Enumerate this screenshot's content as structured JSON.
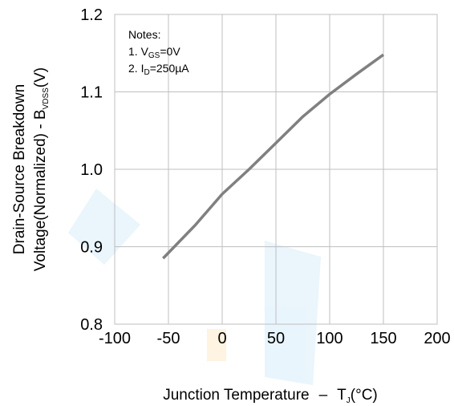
{
  "chart_data": {
    "type": "line",
    "xlabel_main": "Junction Temperature",
    "xlabel_dash": "–",
    "xlabel_sym": "T",
    "xlabel_sub": "J",
    "xlabel_unit": "(°C)",
    "ylabel_line1": "Drain-Source Breakdown",
    "ylabel_line2_pre": "Voltage(Normalized) - B",
    "ylabel_line2_sub": "VDSS",
    "ylabel_line2_post": "(V)",
    "xlim": [
      -100,
      200
    ],
    "ylim": [
      0.8,
      1.2
    ],
    "x_ticks": [
      "-100",
      "-50",
      "0",
      "50",
      "100",
      "150",
      "200"
    ],
    "y_ticks": [
      "0.8",
      "0.9",
      "1.0",
      "1.1",
      "1.2"
    ],
    "grid": true,
    "series": [
      {
        "color": "#808080",
        "x": [
          -55,
          -25,
          0,
          25,
          50,
          75,
          100,
          125,
          150
        ],
        "y": [
          0.885,
          0.928,
          0.968,
          1.0,
          1.034,
          1.068,
          1.097,
          1.123,
          1.148
        ]
      }
    ],
    "notes": {
      "title": "Notes:",
      "n1_pre": "1. V",
      "n1_sub": "GS",
      "n1_post": "=0V",
      "n2_pre": "2. I",
      "n2_sub": "D",
      "n2_post": "=250µA"
    }
  }
}
